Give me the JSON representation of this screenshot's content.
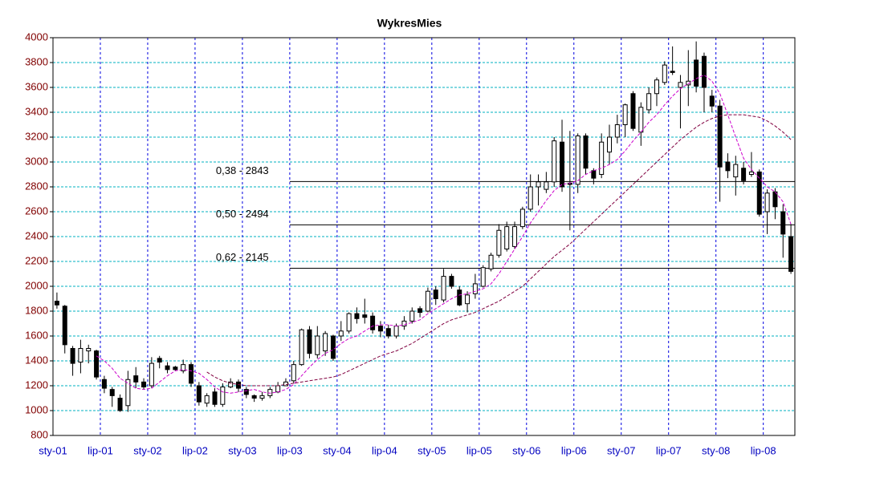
{
  "chart_data": {
    "type": "candlestick",
    "title": "WykresMies",
    "categories": [
      "sty-01",
      null,
      null,
      null,
      null,
      null,
      "lip-01",
      null,
      null,
      null,
      null,
      null,
      "sty-02",
      null,
      null,
      null,
      null,
      null,
      "lip-02",
      null,
      null,
      null,
      null,
      null,
      "sty-03",
      null,
      null,
      null,
      null,
      null,
      "lip-03",
      null,
      null,
      null,
      null,
      null,
      "sty-04",
      null,
      null,
      null,
      null,
      null,
      "lip-04",
      null,
      null,
      null,
      null,
      null,
      "sty-05",
      null,
      null,
      null,
      null,
      null,
      "lip-05",
      null,
      null,
      null,
      null,
      null,
      "sty-06",
      null,
      null,
      null,
      null,
      null,
      "lip-06",
      null,
      null,
      null,
      null,
      null,
      "sty-07",
      null,
      null,
      null,
      null,
      null,
      "lip-07",
      null,
      null,
      null,
      null,
      null,
      "sty-08",
      null,
      null,
      null,
      null,
      null,
      "lip-08",
      null,
      null,
      null
    ],
    "open": [
      1880,
      1840,
      1500,
      1390,
      1480,
      1480,
      1250,
      1170,
      1100,
      1040,
      1280,
      1230,
      1200,
      1420,
      1360,
      1350,
      1320,
      1370,
      1200,
      1060,
      1150,
      1050,
      1190,
      1230,
      1170,
      1120,
      1100,
      1120,
      1150,
      1200,
      1240,
      1370,
      1650,
      1450,
      1480,
      1600,
      1600,
      1640,
      1780,
      1770,
      1760,
      1680,
      1660,
      1600,
      1680,
      1720,
      1820,
      1800,
      1970,
      1890,
      2080,
      1970,
      1860,
      1940,
      2000,
      2140,
      2250,
      2300,
      2320,
      2480,
      2620,
      2800,
      2780,
      2840,
      3160,
      2830,
      2820,
      3210,
      2930,
      2900,
      3080,
      3200,
      3300,
      3550,
      3240,
      3420,
      3550,
      3640,
      3730,
      3600,
      3620,
      3820,
      3850,
      3530,
      3450,
      3000,
      2880,
      2950,
      2900,
      2920,
      2600,
      2760,
      2600,
      2400
    ],
    "high": [
      1950,
      1850,
      1520,
      1570,
      1530,
      1490,
      1280,
      1190,
      1130,
      1320,
      1350,
      1260,
      1430,
      1440,
      1390,
      1360,
      1410,
      1390,
      1230,
      1140,
      1180,
      1220,
      1260,
      1250,
      1190,
      1130,
      1150,
      1190,
      1230,
      1260,
      1400,
      1660,
      1680,
      1680,
      1640,
      1610,
      1720,
      1790,
      1830,
      1900,
      1790,
      1720,
      1690,
      1700,
      1760,
      1830,
      1840,
      1990,
      2000,
      2140,
      2100,
      2000,
      1960,
      2100,
      2170,
      2270,
      2500,
      2520,
      2520,
      2640,
      2900,
      2900,
      2920,
      3200,
      3340,
      3250,
      3230,
      3230,
      2950,
      3230,
      3300,
      3380,
      3470,
      3570,
      3480,
      3600,
      3680,
      3810,
      3930,
      3700,
      3900,
      3970,
      3880,
      3580,
      3500,
      3070,
      3050,
      3000,
      3080,
      2940,
      2780,
      2790,
      2660,
      2500
    ],
    "low": [
      1820,
      1460,
      1280,
      1300,
      1380,
      1250,
      1140,
      1030,
      990,
      990,
      1180,
      1170,
      1180,
      1340,
      1300,
      1320,
      1300,
      1190,
      1040,
      1030,
      1030,
      1030,
      1180,
      1150,
      1100,
      1070,
      1080,
      1100,
      1140,
      1200,
      1220,
      1360,
      1420,
      1420,
      1440,
      1400,
      1560,
      1620,
      1700,
      1700,
      1620,
      1590,
      1580,
      1580,
      1650,
      1700,
      1750,
      1790,
      1850,
      1870,
      1980,
      1840,
      1790,
      1900,
      1990,
      2120,
      2230,
      2280,
      2300,
      2460,
      2600,
      2650,
      2750,
      2800,
      2760,
      2450,
      2750,
      2900,
      2820,
      2870,
      2980,
      3150,
      3200,
      3250,
      3130,
      3390,
      3450,
      3620,
      3700,
      3270,
      3450,
      3560,
      3400,
      3400,
      2680,
      2870,
      2730,
      2820,
      2880,
      2560,
      2420,
      2540,
      2230,
      2100
    ],
    "close": [
      1850,
      1530,
      1380,
      1500,
      1500,
      1270,
      1180,
      1120,
      1000,
      1250,
      1230,
      1190,
      1380,
      1390,
      1330,
      1330,
      1370,
      1220,
      1070,
      1120,
      1050,
      1190,
      1230,
      1180,
      1130,
      1100,
      1120,
      1170,
      1200,
      1230,
      1370,
      1650,
      1460,
      1600,
      1620,
      1420,
      1640,
      1780,
      1740,
      1750,
      1650,
      1640,
      1600,
      1680,
      1720,
      1800,
      1790,
      1960,
      1900,
      2080,
      2000,
      1850,
      1930,
      2020,
      2150,
      2250,
      2450,
      2480,
      2480,
      2620,
      2800,
      2840,
      2840,
      3170,
      2800,
      2820,
      3210,
      2950,
      2870,
      3160,
      3200,
      3300,
      3460,
      3270,
      3440,
      3550,
      3660,
      3780,
      3720,
      3640,
      3650,
      3610,
      3600,
      3450,
      2960,
      2930,
      2980,
      2850,
      2920,
      2580,
      2750,
      2640,
      2420,
      2120
    ],
    "moving_averages": [
      {
        "color": "#cc00cc",
        "values": [
          null,
          null,
          null,
          null,
          null,
          1440,
          1400,
          1340,
          1260,
          1220,
          1180,
          1170,
          1180,
          1230,
          1280,
          1320,
          1330,
          1320,
          1300,
          1250,
          1190,
          1150,
          1140,
          1150,
          1160,
          1170,
          1150,
          1140,
          1150,
          1170,
          1210,
          1280,
          1350,
          1410,
          1460,
          1490,
          1540,
          1580,
          1600,
          1640,
          1680,
          1690,
          1690,
          1680,
          1690,
          1710,
          1730,
          1780,
          1820,
          1860,
          1900,
          1930,
          1940,
          1960,
          1980,
          2020,
          2100,
          2200,
          2300,
          2400,
          2510,
          2600,
          2690,
          2770,
          2820,
          2830,
          2850,
          2900,
          2930,
          2950,
          2980,
          3020,
          3090,
          3170,
          3240,
          3320,
          3380,
          3460,
          3530,
          3590,
          3630,
          3670,
          3700,
          3650,
          3550,
          3380,
          3200,
          3030,
          2940,
          2870,
          2800,
          2760,
          2680,
          2500
        ]
      },
      {
        "color": "#800040",
        "values": [
          null,
          null,
          null,
          null,
          null,
          null,
          null,
          null,
          null,
          null,
          null,
          null,
          null,
          null,
          null,
          null,
          null,
          null,
          null,
          1310,
          1270,
          1240,
          1220,
          1210,
          1200,
          1200,
          1200,
          1200,
          1200,
          1210,
          1220,
          1230,
          1240,
          1250,
          1260,
          1270,
          1290,
          1320,
          1350,
          1380,
          1410,
          1440,
          1460,
          1480,
          1510,
          1540,
          1580,
          1620,
          1660,
          1700,
          1730,
          1750,
          1770,
          1790,
          1820,
          1850,
          1880,
          1920,
          1960,
          2000,
          2060,
          2120,
          2180,
          2240,
          2290,
          2340,
          2400,
          2460,
          2520,
          2580,
          2640,
          2700,
          2760,
          2820,
          2880,
          2940,
          3000,
          3060,
          3120,
          3180,
          3230,
          3280,
          3320,
          3350,
          3370,
          3380,
          3380,
          3380,
          3370,
          3360,
          3330,
          3290,
          3240,
          3180
        ]
      }
    ],
    "levels": [
      {
        "label": "0,38 - 2843",
        "value": 2843,
        "start": "lip-03"
      },
      {
        "label": "0,50 - 2494",
        "value": 2494,
        "start": "lip-03"
      },
      {
        "label": "0,62 - 2145",
        "value": 2145,
        "start": "lip-03"
      }
    ],
    "ylim": [
      800,
      4000
    ],
    "yticks": [
      800,
      1000,
      1200,
      1400,
      1600,
      1800,
      2000,
      2200,
      2400,
      2600,
      2800,
      3000,
      3200,
      3400,
      3600,
      3800,
      4000
    ],
    "grid": true
  }
}
